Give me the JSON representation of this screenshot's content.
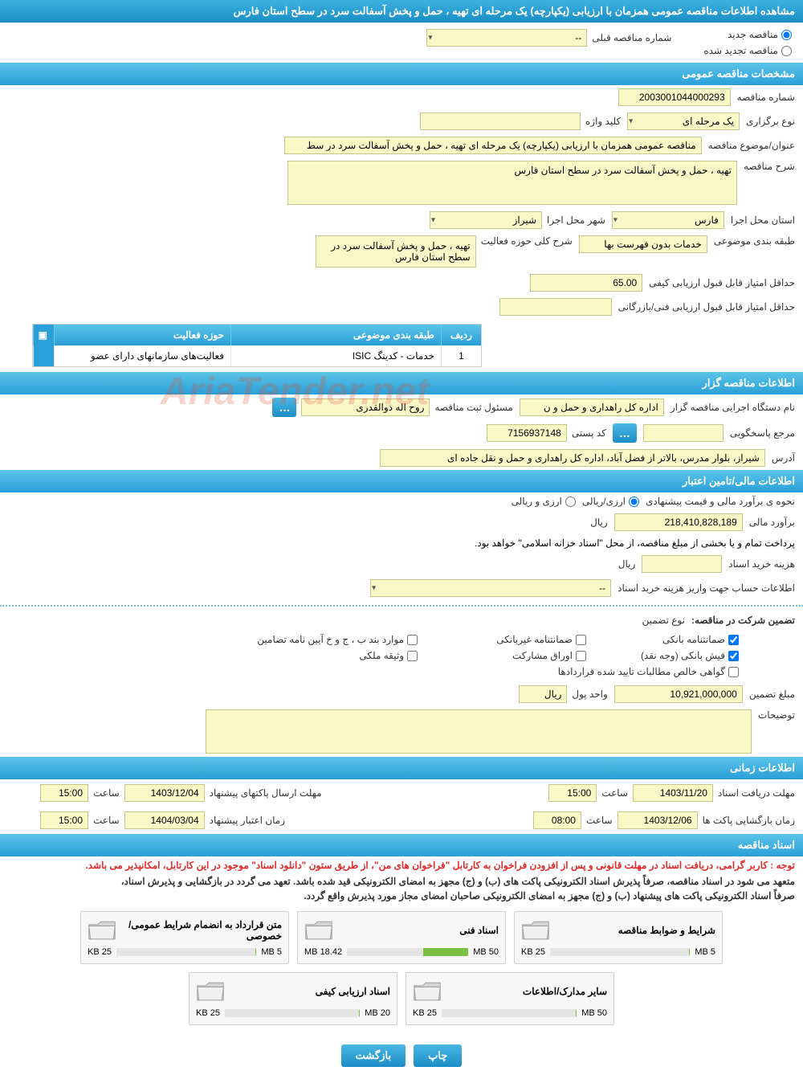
{
  "main_header": "مشاهده اطلاعات مناقصه عمومی همزمان با ارزیابی (یکپارچه) یک مرحله ای تهیه ، حمل و پخش آسفالت سرد در سطح استان فارس",
  "radios": {
    "new_tender": "مناقصه جدید",
    "renewed_tender": "مناقصه تجدید شده"
  },
  "prev_number_label": "شماره مناقصه قبلی",
  "prev_number_value": "--",
  "section_general": "مشخصات مناقصه عمومی",
  "tender_number_label": "شماره مناقصه",
  "tender_number": "2003001044000293",
  "holding_type_label": "نوع برگزاری",
  "holding_type": "یک مرحله ای",
  "keyword_label": "کلید واژه",
  "keyword": "",
  "subject_label": "عنوان/موضوع مناقصه",
  "subject": "مناقصه عمومی همزمان با ارزیابی (یکپارچه) یک مرحله ای تهیه ، حمل و پخش آسفالت سرد در سط",
  "desc_label": "شرح مناقصه",
  "desc": "تهیه ، حمل و پخش آسفالت سرد در سطح استان فارس",
  "province_label": "استان محل اجرا",
  "province": "فارس",
  "city_label": "شهر محل اجرا",
  "city": "شیراز",
  "category_label": "طبقه بندی موضوعی",
  "category": "خدمات بدون فهرست بها",
  "scope_label": "شرح کلی حوزه فعالیت",
  "scope": "تهیه ، حمل و پخش آسفالت سرد در سطح استان فارس",
  "min_quality_label": "حداقل امتیاز قابل قبول ارزیابی کیفی",
  "min_quality": "65.00",
  "min_tech_label": "حداقل امتیاز قابل قبول ارزیابی فنی/بازرگانی",
  "min_tech": "",
  "activity_table": {
    "title": "حوزه های فعالیت",
    "h_row": "ردیف",
    "h_cat": "طبقه بندی موضوعی",
    "h_act": "حوزه فعالیت",
    "row": {
      "n": "1",
      "cat": "خدمات - کدینگ ISIC",
      "act": "فعالیت‌های سازمانهای دارای عضو"
    }
  },
  "section_org": "اطلاعات مناقصه گزار",
  "org_name_label": "نام دستگاه اجرایی مناقصه گزار",
  "org_name": "اداره کل راهداری و حمل و ن",
  "registrar_label": "مسئول ثبت مناقصه",
  "registrar": "روح اله ذوالقدری",
  "response_label": "مرجع پاسخگویی",
  "response": "",
  "postal_label": "کد پستی",
  "postal": "7156937148",
  "address_label": "آدرس",
  "address": "شیراز، بلوار مدرس، بالاتر از فضل آباد، اداره کل راهداری و حمل و نقل جاده ای",
  "section_fin": "اطلاعات مالی/تامین اعتبار",
  "estimate_type_label": "نحوه ی برآورد مالی و قیمت پیشنهادی",
  "estimate_type_opts": {
    "rial": "ارزی/ریالی",
    "currency": "ارزی و ریالی"
  },
  "estimate_label": "برآورد مالی",
  "estimate": "218,410,828,189",
  "unit_rial": "ریال",
  "treasury_note": "پرداخت تمام و یا بخشی از مبلغ مناقصه، از محل \"اسناد خزانه اسلامی\" خواهد بود.",
  "doc_cost_label": "هزینه خرید اسناد",
  "doc_cost": "",
  "account_label": "اطلاعات حساب جهت واریز هزینه خرید اسناد",
  "account": "--",
  "guarantee_label": "تضمین شرکت در مناقصه:",
  "guarantee_type_label": "نوع تضمین",
  "checks": {
    "bank_g": "ضمانتنامه بانکی",
    "nonbank_g": "ضمانتنامه غیربانکی",
    "bond_note": "موارد بند ب ، ج و خ آیین نامه تضامین",
    "bank_slip": "فیش بانکی (وجه نقد)",
    "shares": "اوراق مشارکت",
    "property": "وثیقه ملکی",
    "receivables": "گواهی خالص مطالبات تایید شده قراردادها"
  },
  "checks_state": {
    "bank_g": true,
    "nonbank_g": false,
    "bond_note": false,
    "bank_slip": true,
    "shares": false,
    "property": false,
    "receivables": false
  },
  "guarantee_amount_label": "مبلغ تضمین",
  "guarantee_amount": "10,921,000,000",
  "currency_unit_label": "واحد پول",
  "currency_unit": "ریال",
  "notes_label": "توضیحات",
  "section_time": "اطلاعات زمانی",
  "doc_deadline_label": "مهلت دریافت اسناد",
  "doc_deadline_date": "1403/11/20",
  "doc_deadline_time": "15:00",
  "proposal_label": "مهلت ارسال پاکتهای پیشنهاد",
  "proposal_date": "1403/12/04",
  "proposal_time": "15:00",
  "open_label": "زمان بازگشایی پاکت ها",
  "open_date": "1403/12/06",
  "open_time": "08:00",
  "validity_label": "زمان اعتبار پیشنهاد",
  "validity_date": "1404/03/04",
  "validity_time": "15:00",
  "time_label": "ساعت",
  "section_docs": "اسناد مناقصه",
  "notice_red": "توجه : کاربر گرامی، دریافت اسناد در مهلت قانونی و پس از افزودن فراخوان به کارتابل \"فراخوان های من\"، از طریق ستون \"دانلود اسناد\" موجود در این کارتابل، امکانپذیر می باشد.",
  "notice_black1": "متعهد می شود در اسناد مناقصه، صرفاً پذیرش اسناد الکترونیکی پاکت های (ب) و (ج) مجهز به امضای الکترونیکی قید شده باشد. تعهد می گردد در بازگشایی و پذیرش اسناد،",
  "notice_black2": "صرفاً اسناد الکترونیکی پاکت های پیشنهاد (ب) و (ج) مجهز به امضای الکترونیکی صاحبان امضای مجاز مورد پذیرش واقع گردد.",
  "docs": [
    {
      "title": "شرایط و ضوابط مناقصه",
      "used": "25 KB",
      "total": "5 MB",
      "pct": 1
    },
    {
      "title": "اسناد فنی",
      "used": "18.42 MB",
      "total": "50 MB",
      "pct": 37
    },
    {
      "title": "متن قرارداد به انضمام شرایط عمومی/خصوصی",
      "used": "25 KB",
      "total": "5 MB",
      "pct": 1
    },
    {
      "title": "سایر مدارک/اطلاعات",
      "used": "25 KB",
      "total": "50 MB",
      "pct": 1
    },
    {
      "title": "اسناد ارزیابی کیفی",
      "used": "25 KB",
      "total": "20 MB",
      "pct": 1
    }
  ],
  "btn_print": "چاپ",
  "btn_back": "بازگشت",
  "colors": {
    "header_bg": "#2a9fd8",
    "field_bg": "#fbf8c8",
    "field_border": "#c7c68a",
    "progress_fill": "#7bc043"
  }
}
